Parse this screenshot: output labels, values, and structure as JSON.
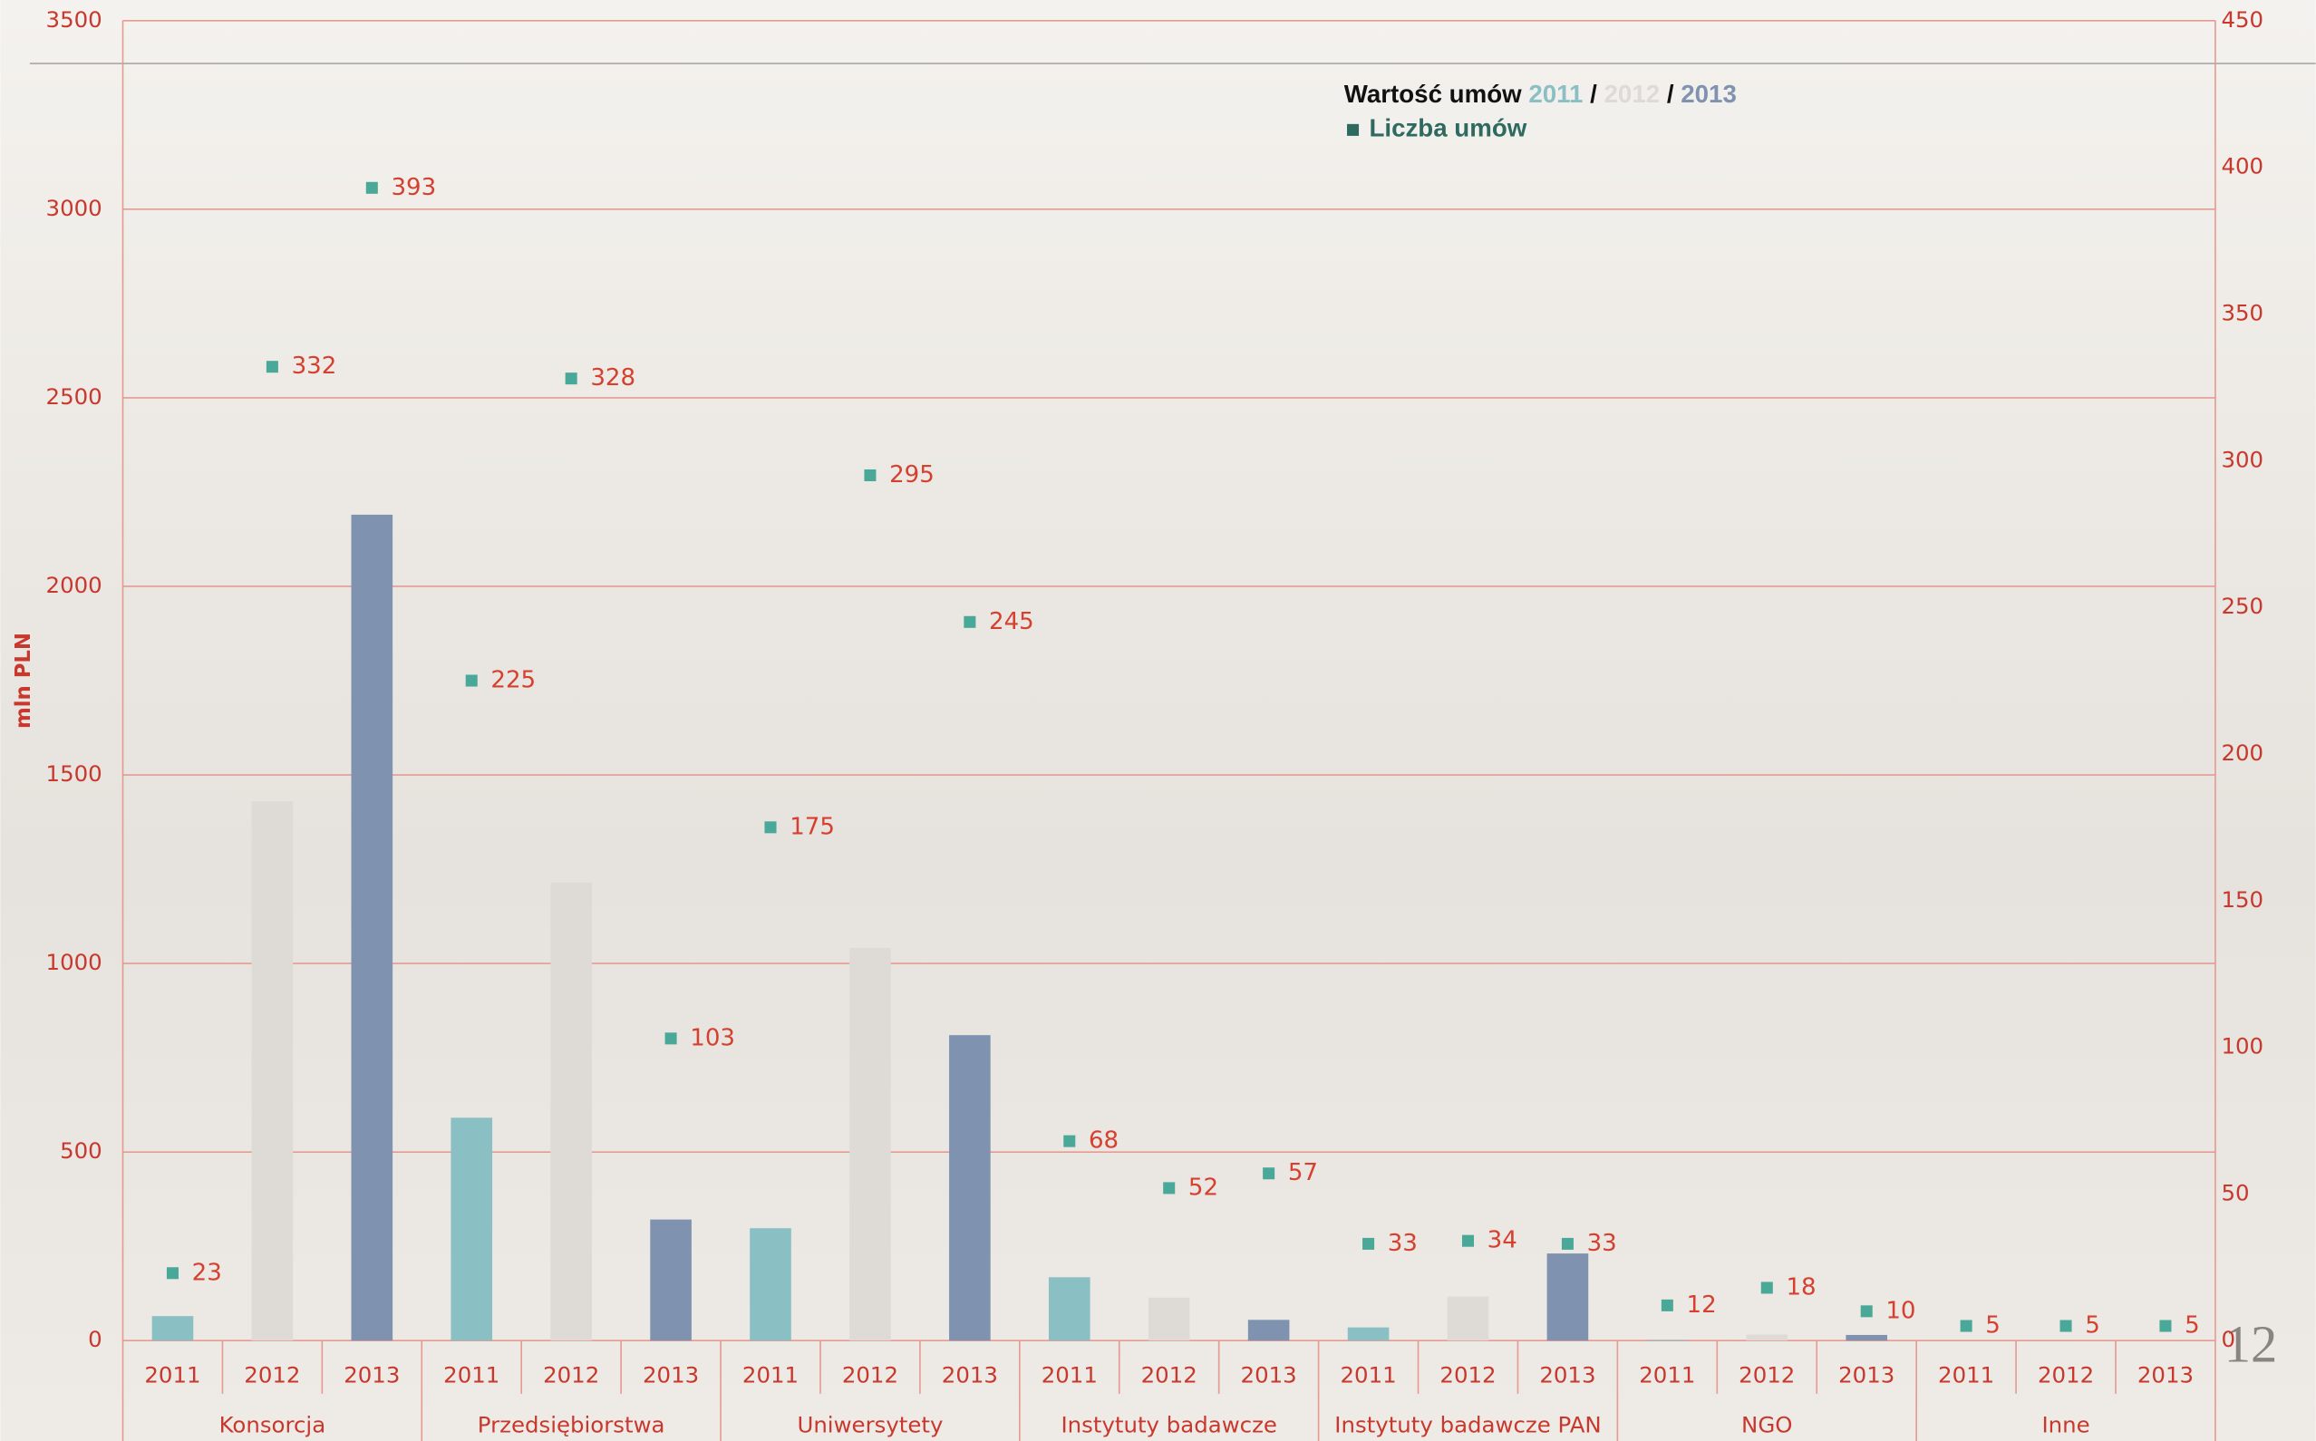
{
  "chart_data": {
    "type": "bar",
    "y_label": "mln PLN",
    "legend_title": "Wartość umów",
    "legend_separator": "/",
    "groups": [
      "Konsorcja",
      "Przedsiębiorstwa",
      "Uniwersytety",
      "Instytuty badawcze",
      "Instytuty badawcze PAN",
      "NGO",
      "Inne"
    ],
    "series": [
      {
        "name": "2011",
        "color": "#8abfc4",
        "values": [
          65,
          591,
          298,
          168,
          35,
          2,
          0
        ]
      },
      {
        "name": "2012",
        "color": "#dedad6",
        "values": [
          1430,
          1214,
          1041,
          114,
          117,
          16,
          0
        ]
      },
      {
        "name": "2013",
        "color": "#7f93b0",
        "values": [
          2190,
          321,
          810,
          55,
          231,
          15,
          0
        ]
      },
      {
        "name": "Liczba umów",
        "color": "#4aa898",
        "axis": "y2",
        "type": "scatter",
        "values": [
          23,
          332,
          393,
          225,
          328,
          103,
          175,
          295,
          245,
          68,
          52,
          57,
          33,
          34,
          33,
          12,
          18,
          10,
          5,
          5,
          5
        ]
      }
    ],
    "ylim": [
      0,
      3500
    ],
    "yticks": [
      0,
      500,
      1000,
      1500,
      2000,
      2500,
      3000,
      3500
    ],
    "y2lim": [
      0,
      450
    ],
    "y2ticks": [
      0,
      50,
      100,
      150,
      200,
      250,
      300,
      350,
      400,
      450
    ],
    "grid": true,
    "page_number": "12"
  }
}
